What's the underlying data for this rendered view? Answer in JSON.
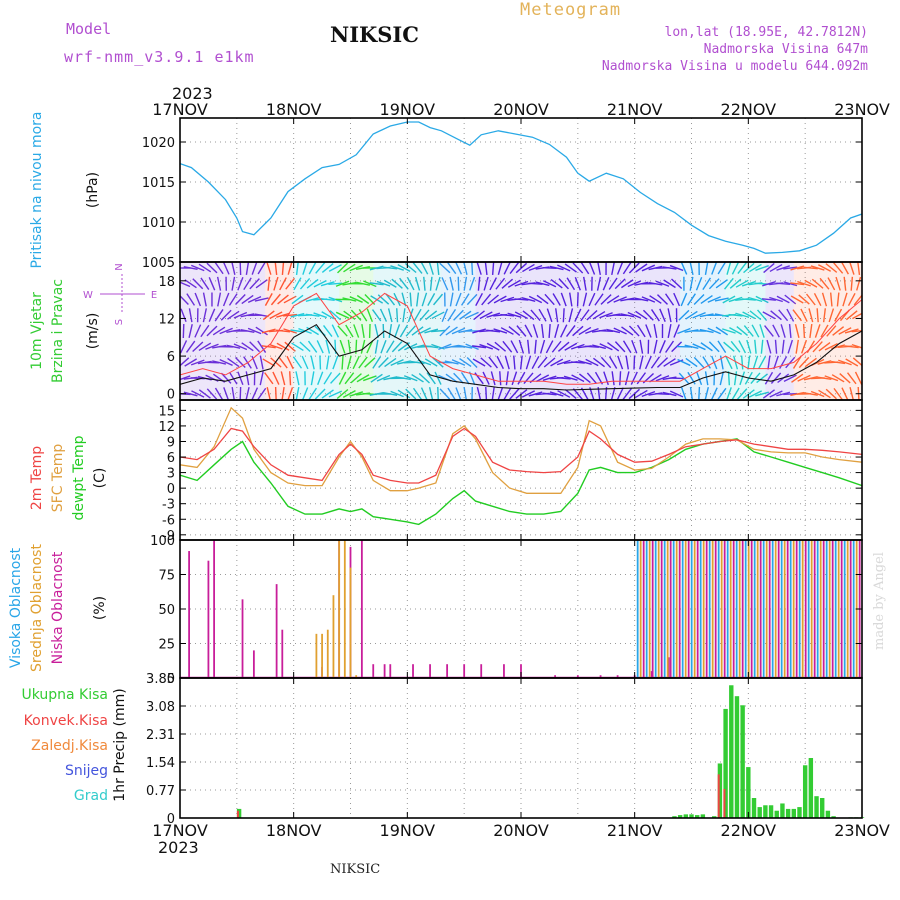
{
  "header": {
    "model_label": "Model",
    "model_value": "wrf-nmm_v3.9.1 e1km",
    "station": "NIKSIC",
    "meteogram": "Meteogram",
    "lonlat": "lon,lat (18.95E, 42.7812N)",
    "altitude": "Nadmorska Visina 647m",
    "model_altitude": "Nadmorska Visina u modelu 644.092m",
    "year_top": "2023",
    "year_bottom": "2023"
  },
  "footer": {
    "station": "NIKSIC",
    "credit": "made by Angel"
  },
  "x_ticks": [
    "17NOV",
    "18NOV",
    "19NOV",
    "20NOV",
    "21NOV",
    "22NOV",
    "23NOV"
  ],
  "colors": {
    "pressure": "#2aa9e6",
    "wind_speed": "#111111",
    "gust": "#ff4444",
    "t2m": "#ef4444",
    "sfc": "#e0a040",
    "dew": "#22cc22",
    "high_cloud": "#29a6e8",
    "mid_cloud": "#e0a030",
    "low_cloud": "#c81e9a",
    "total_precip": "#33cc33",
    "conv_precip": "#ef4444",
    "frozen_precip": "#f08a3c",
    "snow": "#4455dd",
    "hail": "#33cccc",
    "wind_compass": "#b14fd0"
  },
  "panels": {
    "pressure": {
      "label": "Pritisak na nivou mora",
      "unit": "(hPa)",
      "ticks": [
        "1005",
        "1010",
        "1015",
        "1020"
      ]
    },
    "wind": {
      "labels": [
        "10m Vjetar",
        "Brzina i Pravac"
      ],
      "unit": "(m/s)",
      "ticks": [
        "0",
        "6",
        "12",
        "18"
      ],
      "compass": {
        "n": "N",
        "s": "S",
        "e": "E",
        "w": "W"
      }
    },
    "temp": {
      "labels": [
        "2m Temp",
        "SFC Temp",
        "dewpt Temp"
      ],
      "unit": "(C)",
      "ticks": [
        "-9",
        "-6",
        "-3",
        "0",
        "3",
        "6",
        "9",
        "12",
        "15"
      ]
    },
    "cloud": {
      "labels": [
        "Visoka Oblacnost",
        "Srednja Oblacnost",
        "Niska Oblacnost"
      ],
      "unit": "(%)",
      "ticks": [
        "0",
        "25",
        "50",
        "75",
        "100"
      ]
    },
    "precip": {
      "labels": [
        "Ukupna Kisa",
        "Konvek.Kisa",
        "Zaledj.Kisa",
        "Snijeg",
        "Grad"
      ],
      "unit": "1hr Precip (mm)",
      "ticks": [
        "0",
        "0.77",
        "1.54",
        "2.31",
        "3.08",
        "3.85"
      ]
    }
  },
  "chart_data": [
    {
      "type": "line",
      "title": "Pritisak na nivou mora",
      "ylabel": "(hPa)",
      "ylim": [
        1005,
        1023
      ],
      "x_unit": "days since 17NOV 00UTC",
      "series": [
        {
          "name": "Pritisak na nivou mora",
          "x": [
            0,
            0.1,
            0.25,
            0.4,
            0.5,
            0.55,
            0.65,
            0.8,
            0.95,
            1.1,
            1.25,
            1.4,
            1.55,
            1.7,
            1.85,
            2.0,
            2.1,
            2.2,
            2.3,
            2.45,
            2.55,
            2.65,
            2.8,
            2.95,
            3.1,
            3.25,
            3.4,
            3.5,
            3.6,
            3.75,
            3.9,
            4.05,
            4.2,
            4.35,
            4.5,
            4.65,
            4.8,
            4.95,
            5.05,
            5.15,
            5.3,
            5.45,
            5.6,
            5.75,
            5.9,
            6.0
          ],
          "y": [
            1017.3,
            1016.8,
            1015.0,
            1012.8,
            1010.5,
            1008.8,
            1008.4,
            1010.5,
            1013.8,
            1015.4,
            1016.8,
            1017.2,
            1018.4,
            1021.0,
            1022.0,
            1022.5,
            1022.5,
            1021.8,
            1021.4,
            1020.3,
            1019.6,
            1020.9,
            1021.4,
            1021.0,
            1020.6,
            1019.7,
            1018.1,
            1016.1,
            1015.1,
            1016.1,
            1015.4,
            1013.7,
            1012.3,
            1011.2,
            1009.6,
            1008.3,
            1007.6,
            1007.1,
            1006.7,
            1006.1,
            1006.2,
            1006.4,
            1007.1,
            1008.6,
            1010.5,
            1011.0
          ]
        }
      ]
    },
    {
      "type": "line",
      "title": "10m Vjetar Brzina i Pravac",
      "ylabel": "(m/s)",
      "ylim": [
        -1,
        21
      ],
      "series": [
        {
          "name": "10m Vjetar Brzina",
          "x": [
            0,
            0.2,
            0.4,
            0.6,
            0.8,
            1.0,
            1.2,
            1.4,
            1.6,
            1.8,
            2.0,
            2.2,
            2.4,
            2.6,
            2.8,
            3.0,
            3.2,
            3.4,
            3.6,
            3.8,
            4.0,
            4.2,
            4.4,
            4.6,
            4.8,
            5.0,
            5.2,
            5.4,
            5.6,
            5.8,
            6.0
          ],
          "y": [
            1.5,
            2.5,
            2.0,
            3.0,
            4.0,
            9.0,
            11.0,
            6.0,
            7.0,
            10.0,
            8.0,
            3.0,
            2.0,
            1.5,
            1.0,
            0.8,
            0.8,
            0.6,
            0.7,
            0.8,
            0.9,
            1.0,
            1.0,
            2.5,
            3.5,
            2.5,
            2.0,
            3.0,
            5.0,
            8.0,
            10.0
          ]
        },
        {
          "name": "Udar vjetra",
          "x": [
            0,
            0.2,
            0.4,
            0.6,
            0.8,
            1.0,
            1.2,
            1.4,
            1.6,
            1.8,
            2.0,
            2.2,
            2.4,
            2.6,
            2.8,
            3.0,
            3.2,
            3.4,
            3.6,
            3.8,
            4.0,
            4.2,
            4.4,
            4.6,
            4.8,
            5.0,
            5.2,
            5.4,
            5.6,
            5.8,
            6.0
          ],
          "y": [
            3,
            4,
            3,
            5,
            8,
            14,
            16,
            11,
            13,
            16,
            14,
            6,
            4,
            3,
            2,
            2,
            2,
            1.5,
            1.5,
            2,
            2,
            2,
            2,
            4,
            6,
            4,
            4,
            5,
            8,
            12,
            15
          ]
        }
      ],
      "direction_bands": [
        {
          "from": 0,
          "to": 0.75,
          "color": "#6a2fd8"
        },
        {
          "from": 0.75,
          "to": 1.0,
          "color": "#ff5533"
        },
        {
          "from": 1.0,
          "to": 1.4,
          "color": "#22ccdd"
        },
        {
          "from": 1.4,
          "to": 1.7,
          "color": "#33dd33"
        },
        {
          "from": 1.7,
          "to": 2.3,
          "color": "#22bbcc"
        },
        {
          "from": 2.3,
          "to": 2.6,
          "color": "#3399ee"
        },
        {
          "from": 2.6,
          "to": 4.4,
          "color": "#5522dd"
        },
        {
          "from": 4.4,
          "to": 4.8,
          "color": "#2299ee"
        },
        {
          "from": 4.8,
          "to": 5.15,
          "color": "#22cccc"
        },
        {
          "from": 5.15,
          "to": 5.4,
          "color": "#6633dd"
        },
        {
          "from": 5.4,
          "to": 6.0,
          "color": "#ff6633"
        }
      ]
    },
    {
      "type": "line",
      "title": "Temperatura",
      "ylabel": "(C)",
      "ylim": [
        -10,
        17
      ],
      "series": [
        {
          "name": "2m Temp",
          "x": [
            0,
            0.15,
            0.3,
            0.45,
            0.55,
            0.65,
            0.8,
            0.95,
            1.1,
            1.25,
            1.4,
            1.5,
            1.6,
            1.7,
            1.85,
            2.0,
            2.1,
            2.25,
            2.4,
            2.5,
            2.6,
            2.75,
            2.9,
            3.05,
            3.2,
            3.35,
            3.5,
            3.6,
            3.7,
            3.85,
            4.0,
            4.15,
            4.3,
            4.45,
            4.6,
            4.75,
            4.9,
            5.05,
            5.2,
            5.35,
            5.5,
            5.65,
            5.8,
            6.0
          ],
          "y": [
            6,
            5.5,
            7.5,
            11.5,
            11.0,
            8.0,
            4.5,
            2.5,
            2.0,
            1.5,
            6.5,
            8.5,
            6.5,
            2.5,
            1.5,
            1.0,
            1.0,
            2.5,
            10.0,
            11.5,
            10.0,
            5.0,
            3.5,
            3.2,
            3.0,
            3.2,
            6.0,
            11.0,
            9.5,
            6.5,
            5.0,
            5.2,
            6.5,
            8.0,
            8.5,
            9.0,
            9.3,
            8.5,
            8.0,
            7.5,
            7.5,
            7.3,
            7.0,
            6.5
          ]
        },
        {
          "name": "SFC Temp",
          "x": [
            0,
            0.15,
            0.3,
            0.45,
            0.55,
            0.65,
            0.8,
            0.95,
            1.1,
            1.25,
            1.4,
            1.5,
            1.6,
            1.7,
            1.85,
            2.0,
            2.1,
            2.25,
            2.4,
            2.5,
            2.6,
            2.75,
            2.9,
            3.05,
            3.2,
            3.35,
            3.5,
            3.6,
            3.7,
            3.85,
            4.0,
            4.15,
            4.3,
            4.45,
            4.6,
            4.75,
            4.9,
            5.05,
            5.2,
            5.35,
            5.5,
            5.65,
            5.8,
            6.0
          ],
          "y": [
            4.5,
            4.0,
            8.0,
            15.5,
            13.5,
            7.5,
            3.0,
            1.0,
            0.5,
            0.5,
            6.0,
            9.0,
            6.0,
            1.5,
            -0.5,
            -0.5,
            0.0,
            1.0,
            10.5,
            12.0,
            9.5,
            3.0,
            0.0,
            -1.0,
            -1.0,
            -1.0,
            4.0,
            13.0,
            12.0,
            5.0,
            3.5,
            3.8,
            6.0,
            8.5,
            9.5,
            9.5,
            9.3,
            7.5,
            7.0,
            6.8,
            6.8,
            6.0,
            5.5,
            5.0
          ]
        },
        {
          "name": "dewpt Temp",
          "x": [
            0,
            0.15,
            0.3,
            0.45,
            0.55,
            0.65,
            0.8,
            0.95,
            1.1,
            1.25,
            1.4,
            1.5,
            1.6,
            1.7,
            1.85,
            2.0,
            2.1,
            2.25,
            2.4,
            2.5,
            2.6,
            2.75,
            2.9,
            3.05,
            3.2,
            3.35,
            3.5,
            3.6,
            3.7,
            3.85,
            4.0,
            4.15,
            4.3,
            4.45,
            4.6,
            4.75,
            4.9,
            5.05,
            5.2,
            5.35,
            5.5,
            5.65,
            5.8,
            6.0
          ],
          "y": [
            2.5,
            1.5,
            4.5,
            7.5,
            9.0,
            5.0,
            1.0,
            -3.5,
            -5.0,
            -5.0,
            -4.0,
            -4.5,
            -4.0,
            -5.5,
            -6.0,
            -6.5,
            -7.0,
            -5.0,
            -2.0,
            -0.5,
            -2.5,
            -3.5,
            -4.5,
            -5.0,
            -5.0,
            -4.5,
            -1.0,
            3.5,
            4.0,
            3.0,
            3.0,
            4.0,
            5.5,
            7.5,
            8.5,
            9.0,
            9.5,
            7.0,
            6.0,
            5.0,
            4.0,
            3.0,
            2.0,
            0.5
          ]
        }
      ]
    },
    {
      "type": "bar",
      "title": "Oblacnost",
      "ylabel": "(%)",
      "ylim": [
        0,
        100
      ],
      "series": [
        {
          "name": "Niska Oblacnost",
          "x": [
            0.08,
            0.25,
            0.3,
            0.55,
            0.65,
            0.85,
            0.9,
            1.25,
            1.4,
            1.5,
            1.6,
            1.7,
            1.8,
            1.85,
            2.05,
            2.2,
            2.35,
            2.5,
            2.65,
            2.85,
            3.0,
            3.3,
            3.5,
            3.7,
            3.85,
            4.0,
            4.15,
            4.3
          ],
          "values": [
            92,
            85,
            100,
            57,
            20,
            68,
            35,
            8,
            100,
            95,
            100,
            10,
            10,
            10,
            10,
            10,
            10,
            10,
            10,
            10,
            10,
            2,
            2,
            2,
            2,
            2,
            5,
            15
          ]
        },
        {
          "name": "Srednja Oblacnost",
          "x": [
            1.2,
            1.25,
            1.3,
            1.35,
            1.4,
            1.45,
            1.5,
            1.55
          ],
          "values": [
            32,
            32,
            35,
            60,
            100,
            100,
            80,
            2
          ]
        }
      ],
      "dense_block": {
        "from": 4.0,
        "to": 6.0,
        "value": 100,
        "colors": [
          "#29a6e8",
          "#e0a030",
          "#c81e9a"
        ]
      }
    },
    {
      "type": "bar",
      "title": "1hr Precip",
      "ylabel": "1hr Precip (mm)",
      "ylim": [
        0,
        3.85
      ],
      "series": [
        {
          "name": "Ukupna Kisa",
          "x": [
            0.52,
            4.35,
            4.4,
            4.45,
            4.5,
            4.55,
            4.6,
            4.7,
            4.75,
            4.8,
            4.85,
            4.9,
            4.95,
            5.0,
            5.05,
            5.1,
            5.15,
            5.2,
            5.25,
            5.3,
            5.35,
            5.4,
            5.45,
            5.5,
            5.55,
            5.6,
            5.65,
            5.7,
            5.75,
            5.9,
            5.95,
            6.0
          ],
          "values": [
            0.25,
            0.05,
            0.08,
            0.1,
            0.1,
            0.08,
            0.1,
            0.05,
            1.5,
            3.0,
            3.65,
            3.35,
            3.1,
            1.4,
            0.55,
            0.3,
            0.35,
            0.35,
            0.2,
            0.4,
            0.25,
            0.25,
            0.3,
            1.45,
            1.65,
            0.6,
            0.55,
            0.2,
            0.05,
            0.02,
            0.02,
            0.02
          ]
        },
        {
          "name": "Konvek.Kisa",
          "x": [
            0.52,
            4.75,
            4.8
          ],
          "values": [
            0.2,
            1.2,
            0.8
          ]
        },
        {
          "name": "Zaledj.Kisa",
          "x": [],
          "values": []
        },
        {
          "name": "Snijeg",
          "x": [],
          "values": []
        },
        {
          "name": "Grad",
          "x": [],
          "values": []
        }
      ]
    }
  ]
}
